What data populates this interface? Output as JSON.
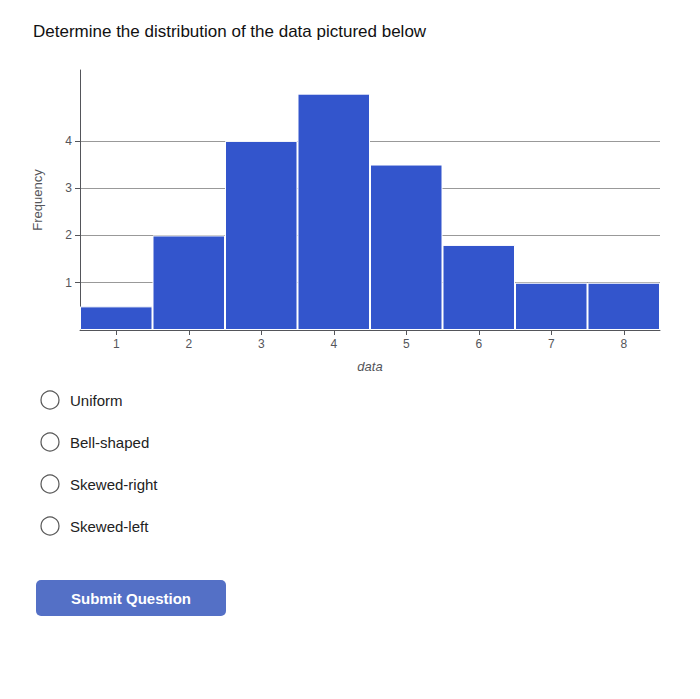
{
  "chart_data": {
    "type": "bar",
    "title": "Determine the distribution of the data pictured below",
    "x": [
      1,
      2,
      3,
      4,
      5,
      6,
      7,
      8
    ],
    "values": [
      0.5,
      2,
      4,
      5,
      3.5,
      1.8,
      1,
      1
    ],
    "color": "#3355cc",
    "xlabel": "data",
    "ylabel": "Frequency",
    "xlim": [
      0.5,
      8.5
    ],
    "xticks": [
      1,
      2,
      3,
      4,
      5,
      6,
      7,
      8
    ],
    "ylim": [
      0,
      5.5
    ],
    "yticks": [
      1,
      2,
      3,
      4
    ],
    "grid": true,
    "annotations": [
      "Uniform",
      "Bell-shaped",
      "Skewed-right",
      "Skewed-left",
      "Submit Question"
    ]
  }
}
